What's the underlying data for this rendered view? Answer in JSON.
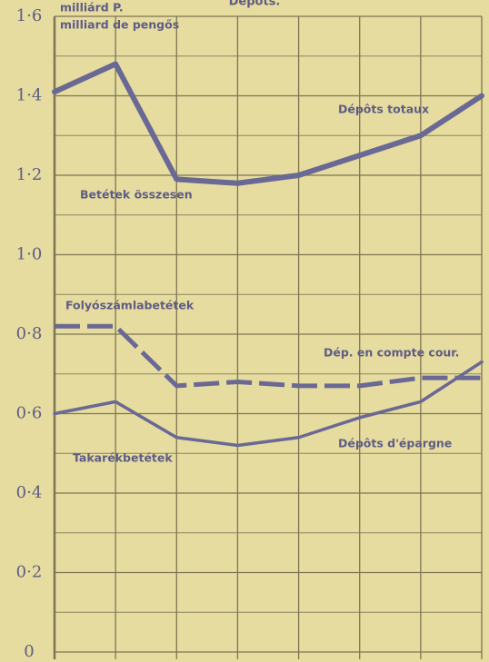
{
  "chart_data": {
    "type": "line",
    "title": "Dépots.",
    "unit_label": "milliárd P.",
    "unit_label_fr": "milliard de pengős",
    "categories": [
      null,
      null,
      null,
      null,
      null,
      null,
      null,
      null
    ],
    "series": [
      {
        "name": "Betétek összesen",
        "name_fr": "Dépôts totaux",
        "color": "#6a6894",
        "dash": false,
        "width": 6,
        "values": [
          1.41,
          1.48,
          1.19,
          1.18,
          1.2,
          1.25,
          1.3,
          1.4
        ]
      },
      {
        "name": "Folyószámlabetétek",
        "name_fr": "Dép. en compte cour.",
        "color": "#6a6894",
        "dash": true,
        "width": 5,
        "values": [
          0.82,
          0.82,
          0.67,
          0.68,
          0.67,
          0.67,
          0.69,
          0.69
        ]
      },
      {
        "name": "Takarékbetétek",
        "name_fr": "Dépôts d'épargne",
        "color": "#6a6894",
        "dash": false,
        "width": 3.5,
        "values": [
          0.6,
          0.63,
          0.54,
          0.52,
          0.54,
          0.59,
          0.63,
          0.73
        ]
      }
    ],
    "ylim": [
      0,
      1.6
    ],
    "yticks": [
      0,
      {
        "value": 0.2,
        "label": "0·2"
      },
      {
        "value": 0.4,
        "label": "0·4"
      },
      {
        "value": 0.6,
        "label": "0·6"
      },
      {
        "value": 0.8,
        "label": "0·8"
      },
      {
        "value": 1.0,
        "label": "1·0"
      },
      {
        "value": 1.2,
        "label": "1·2"
      },
      {
        "value": 1.4,
        "label": "1·4"
      },
      {
        "value": 1.6,
        "label": "1·6"
      }
    ],
    "minor_yticks": [
      0.1,
      0.3,
      0.5,
      0.7,
      0.9,
      1.1,
      1.3,
      1.5
    ],
    "grid": true
  }
}
